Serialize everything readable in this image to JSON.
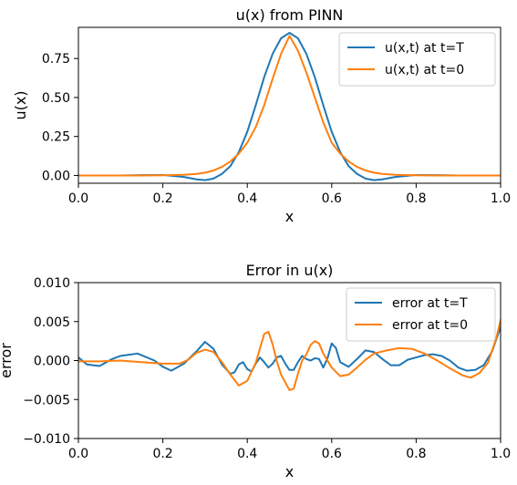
{
  "chart_data": [
    {
      "type": "line",
      "title": "u(x) from PINN",
      "xlabel": "x",
      "ylabel": "u(x)",
      "xlim": [
        0,
        1
      ],
      "ylim": [
        -0.05,
        0.95
      ],
      "xticks": [
        0.0,
        0.2,
        0.4,
        0.6,
        0.8,
        1.0
      ],
      "xtick_labels": [
        "0.0",
        "0.2",
        "0.4",
        "0.6",
        "0.8",
        "1.0"
      ],
      "yticks": [
        0.0,
        0.25,
        0.5,
        0.75
      ],
      "ytick_labels": [
        "0.00",
        "0.25",
        "0.50",
        "0.75"
      ],
      "legend_position": "top-right",
      "grid": false,
      "x": [
        0.0,
        0.05,
        0.1,
        0.15,
        0.2,
        0.25,
        0.28,
        0.3,
        0.32,
        0.34,
        0.36,
        0.38,
        0.4,
        0.42,
        0.44,
        0.46,
        0.48,
        0.5,
        0.52,
        0.54,
        0.56,
        0.58,
        0.6,
        0.62,
        0.64,
        0.66,
        0.68,
        0.7,
        0.72,
        0.75,
        0.8,
        0.85,
        0.9,
        0.95,
        1.0
      ],
      "series": [
        {
          "name": "u(x,t) at t=T",
          "color": "#1f77b4",
          "values": [
            0.0,
            0.0,
            0.0,
            0.002,
            0.003,
            -0.01,
            -0.025,
            -0.03,
            -0.02,
            0.01,
            0.06,
            0.15,
            0.28,
            0.45,
            0.63,
            0.78,
            0.88,
            0.915,
            0.88,
            0.78,
            0.63,
            0.45,
            0.28,
            0.15,
            0.06,
            0.01,
            -0.02,
            -0.03,
            -0.025,
            -0.01,
            0.003,
            0.002,
            0.0,
            0.0,
            0.0
          ]
        },
        {
          "name": "u(x,t) at t=0",
          "color": "#ff7f0e",
          "values": [
            0.0,
            0.0,
            0.0,
            0.0,
            0.001,
            0.004,
            0.01,
            0.018,
            0.032,
            0.055,
            0.09,
            0.14,
            0.21,
            0.31,
            0.45,
            0.62,
            0.78,
            0.895,
            0.8,
            0.66,
            0.5,
            0.34,
            0.21,
            0.14,
            0.09,
            0.055,
            0.032,
            0.018,
            0.01,
            0.004,
            0.001,
            0.0,
            0.0,
            0.0,
            0.0
          ]
        }
      ]
    },
    {
      "type": "line",
      "title": "Error in u(x)",
      "xlabel": "x",
      "ylabel": "error",
      "xlim": [
        0,
        1
      ],
      "ylim": [
        -0.01,
        0.01
      ],
      "xticks": [
        0.0,
        0.2,
        0.4,
        0.6,
        0.8,
        1.0
      ],
      "xtick_labels": [
        "0.0",
        "0.2",
        "0.4",
        "0.6",
        "0.8",
        "1.0"
      ],
      "yticks": [
        -0.01,
        -0.005,
        0.0,
        0.005,
        0.01
      ],
      "ytick_labels": [
        "−0.010",
        "−0.005",
        "0.000",
        "0.005",
        "0.010"
      ],
      "legend_position": "top-right",
      "grid": false,
      "series": [
        {
          "name": "error at t=T",
          "color": "#1f77b4",
          "x": [
            0.0,
            0.02,
            0.05,
            0.08,
            0.1,
            0.14,
            0.18,
            0.2,
            0.22,
            0.25,
            0.28,
            0.3,
            0.32,
            0.34,
            0.36,
            0.37,
            0.38,
            0.39,
            0.4,
            0.41,
            0.42,
            0.43,
            0.44,
            0.45,
            0.46,
            0.47,
            0.48,
            0.49,
            0.5,
            0.51,
            0.52,
            0.53,
            0.54,
            0.55,
            0.56,
            0.57,
            0.58,
            0.59,
            0.6,
            0.61,
            0.62,
            0.64,
            0.66,
            0.68,
            0.7,
            0.72,
            0.74,
            0.76,
            0.78,
            0.8,
            0.82,
            0.84,
            0.86,
            0.88,
            0.9,
            0.92,
            0.94,
            0.96,
            0.98,
            1.0
          ],
          "values": [
            0.0004,
            -0.0005,
            -0.0007,
            0.0002,
            0.0006,
            0.0009,
            0.0,
            -0.0008,
            -0.0013,
            -0.0004,
            0.0012,
            0.0024,
            0.0015,
            -0.0005,
            -0.0017,
            -0.0015,
            -0.0005,
            -0.0002,
            -0.0011,
            -0.0014,
            -0.0004,
            0.0004,
            -0.0002,
            -0.0009,
            -0.0004,
            0.0004,
            0.0006,
            -0.0004,
            -0.0012,
            -0.0012,
            -0.0002,
            0.0006,
            0.0002,
            0.0,
            0.0003,
            0.0002,
            -0.0009,
            0.0003,
            0.0022,
            0.0016,
            -0.0002,
            -0.0008,
            0.0002,
            0.0013,
            0.0011,
            0.0002,
            -0.0006,
            -0.0006,
            0.0001,
            0.0004,
            0.0007,
            0.0008,
            0.0006,
            0.0,
            -0.0009,
            -0.0013,
            -0.0012,
            -0.0006,
            0.0012,
            0.0043
          ]
        },
        {
          "name": "error at t=0",
          "color": "#ff7f0e",
          "x": [
            0.0,
            0.05,
            0.1,
            0.15,
            0.2,
            0.24,
            0.26,
            0.28,
            0.3,
            0.32,
            0.34,
            0.36,
            0.38,
            0.4,
            0.42,
            0.44,
            0.45,
            0.46,
            0.47,
            0.48,
            0.49,
            0.5,
            0.51,
            0.52,
            0.53,
            0.54,
            0.55,
            0.56,
            0.57,
            0.58,
            0.6,
            0.62,
            0.64,
            0.66,
            0.68,
            0.7,
            0.73,
            0.76,
            0.79,
            0.82,
            0.85,
            0.88,
            0.91,
            0.93,
            0.95,
            0.97,
            0.99,
            1.0
          ],
          "values": [
            -0.0001,
            -0.0001,
            0.0,
            -0.0002,
            -0.0004,
            -0.0004,
            0.0001,
            0.001,
            0.0014,
            0.0011,
            -0.0002,
            -0.0018,
            -0.0032,
            -0.0026,
            -0.0003,
            0.0034,
            0.0037,
            0.0021,
            -0.0001,
            -0.0018,
            -0.0028,
            -0.0038,
            -0.0036,
            -0.0017,
            0.0,
            0.0008,
            0.002,
            0.0025,
            0.0022,
            0.0009,
            -0.0009,
            -0.002,
            -0.0018,
            -0.0009,
            0.0001,
            0.0009,
            0.0013,
            0.0016,
            0.0015,
            0.0009,
            0.0,
            -0.001,
            -0.0019,
            -0.0022,
            -0.0016,
            -0.0003,
            0.0029,
            0.0052
          ]
        }
      ]
    }
  ]
}
